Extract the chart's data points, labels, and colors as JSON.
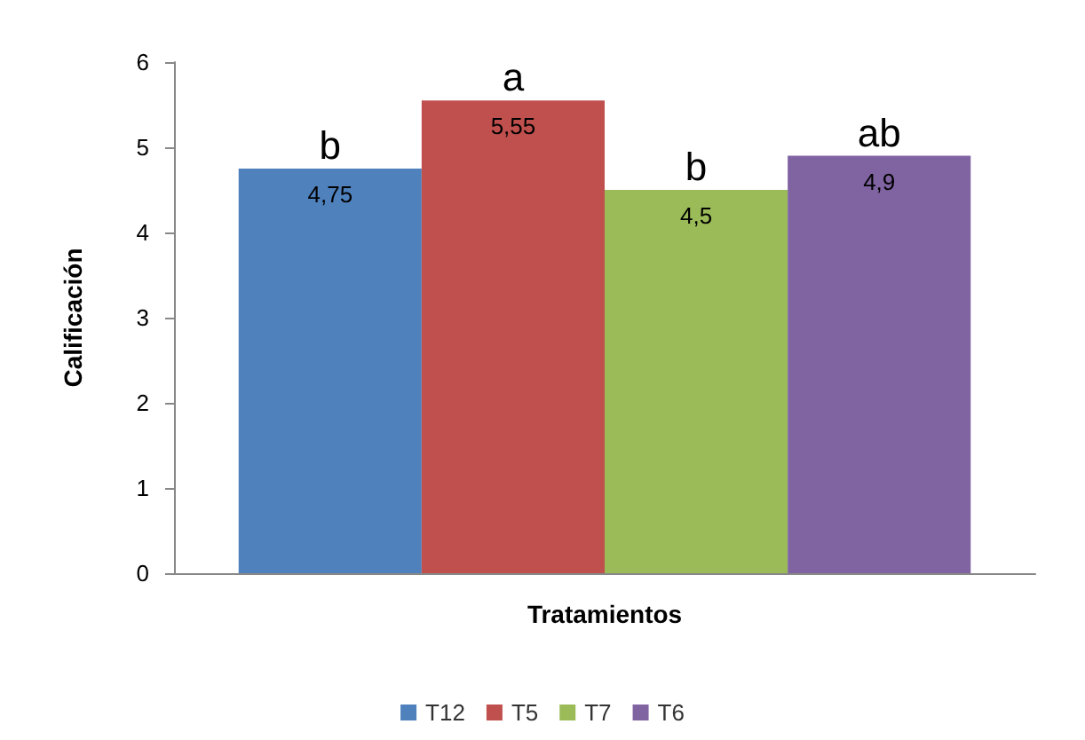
{
  "chart_data": {
    "type": "bar",
    "xlabel": "Tratamientos",
    "ylabel": "Calificación",
    "categories": [
      null
    ],
    "series": [
      {
        "name": "T12",
        "color": "#4f81bd",
        "values": [
          4.75
        ],
        "value_labels": [
          "4,75"
        ]
      },
      {
        "name": "T5",
        "color": "#c0504d",
        "values": [
          5.55
        ],
        "value_labels": [
          "5,55"
        ]
      },
      {
        "name": "T7",
        "color": "#9bbb59",
        "values": [
          4.5
        ],
        "value_labels": [
          "4,5"
        ]
      },
      {
        "name": "T6",
        "color": "#8064a2",
        "values": [
          4.9
        ],
        "value_labels": [
          "4,9"
        ]
      }
    ],
    "annotations": [
      "b",
      "a",
      "b",
      "ab"
    ],
    "ylim": [
      0,
      6
    ],
    "yticks": [
      0,
      1,
      2,
      3,
      4,
      5,
      6
    ],
    "grid": false,
    "legend": "bottom"
  }
}
